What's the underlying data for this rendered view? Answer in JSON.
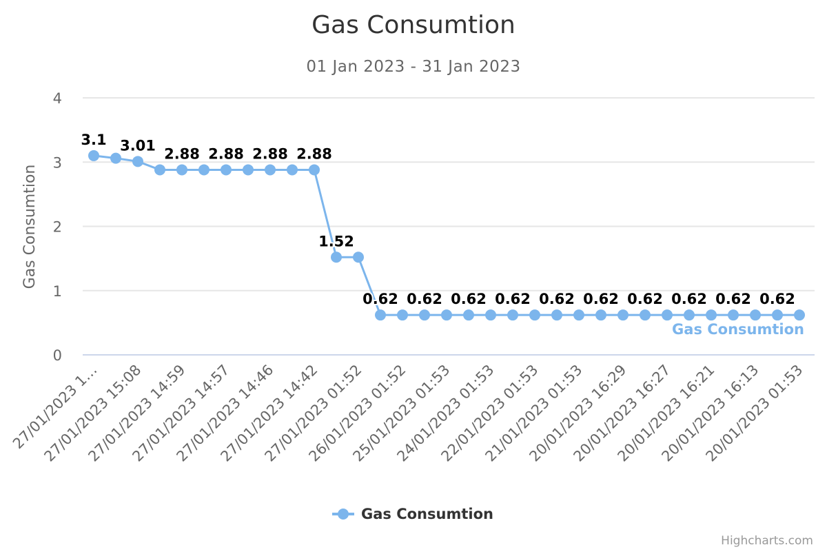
{
  "chart_data": {
    "type": "line",
    "title": "Gas Consumtion",
    "subtitle": "01 Jan 2023 - 31 Jan 2023",
    "ylabel": "Gas Consumtion",
    "xlabel": "",
    "ylim": [
      0,
      4
    ],
    "yticks": [
      0,
      1,
      2,
      3,
      4
    ],
    "grid": true,
    "legend_position": "bottom-center",
    "categories": [
      "27/01/2023 1…",
      "",
      "27/01/2023 15:08",
      "",
      "27/01/2023 14:59",
      "",
      "27/01/2023 14:57",
      "",
      "27/01/2023 14:46",
      "",
      "27/01/2023 14:42",
      "",
      "27/01/2023 01:52",
      "",
      "26/01/2023 01:52",
      "",
      "25/01/2023 01:53",
      "",
      "24/01/2023 01:53",
      "",
      "22/01/2023 01:53",
      "",
      "21/01/2023 01:53",
      "",
      "20/01/2023 16:29",
      "",
      "20/01/2023 16:27",
      "",
      "20/01/2023 16:21",
      "",
      "20/01/2023 16:13",
      "",
      "20/01/2023 01:53"
    ],
    "series": [
      {
        "name": "Gas Consumtion",
        "color": "#7cb5ec",
        "values": [
          3.1,
          3.06,
          3.01,
          2.88,
          2.88,
          2.88,
          2.88,
          2.88,
          2.88,
          2.88,
          2.88,
          1.52,
          1.52,
          0.62,
          0.62,
          0.62,
          0.62,
          0.62,
          0.62,
          0.62,
          0.62,
          0.62,
          0.62,
          0.62,
          0.62,
          0.62,
          0.62,
          0.62,
          0.62,
          0.62,
          0.62,
          0.62,
          0.62
        ],
        "data_labels": [
          "3.1",
          "",
          "3.01",
          "",
          "2.88",
          "",
          "2.88",
          "",
          "2.88",
          "",
          "2.88",
          "1.52",
          "",
          "0.62",
          "",
          "0.62",
          "",
          "0.62",
          "",
          "0.62",
          "",
          "0.62",
          "",
          "0.62",
          "",
          "0.62",
          "",
          "0.62",
          "",
          "0.62",
          "",
          "0.62",
          ""
        ]
      }
    ]
  },
  "legend": {
    "label": "Gas Consumtion"
  },
  "credits": {
    "text": "Highcharts.com"
  }
}
